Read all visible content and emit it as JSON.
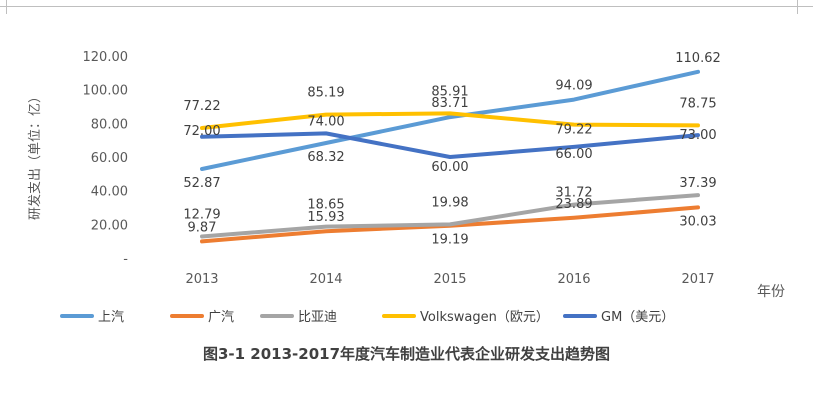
{
  "chart_data": {
    "type": "line",
    "title": "图3-1 2013-2017年度汽车制造业代表企业研发支出趋势图",
    "ylabel": "研发支出（单位：亿）",
    "xlabel": "年份",
    "categories": [
      "2013",
      "2014",
      "2015",
      "2016",
      "2017"
    ],
    "ylim": [
      0,
      120
    ],
    "yticks": [
      "-",
      "20.00",
      "40.00",
      "60.00",
      "80.00",
      "100.00",
      "120.00"
    ],
    "grid": false,
    "legend_position": "bottom",
    "series": [
      {
        "name": "上汽",
        "color": "#5B9BD5",
        "values": [
          52.87,
          68.32,
          83.71,
          94.09,
          110.62
        ],
        "labels": [
          "52.87",
          "68.32",
          "83.71",
          "94.09",
          "110.62"
        ]
      },
      {
        "name": "广汽",
        "color": "#ED7D31",
        "values": [
          9.87,
          15.93,
          19.19,
          23.89,
          30.03
        ],
        "labels": [
          "9.87",
          "15.93",
          "19.19",
          "23.89",
          "30.03"
        ]
      },
      {
        "name": "比亚迪",
        "color": "#A5A5A5",
        "values": [
          12.79,
          18.65,
          19.98,
          31.72,
          37.39
        ],
        "labels": [
          "12.79",
          "18.65",
          "19.98",
          "31.72",
          "37.39"
        ]
      },
      {
        "name": "Volkswagen（欧元）",
        "color": "#FFC000",
        "values": [
          77.22,
          85.19,
          85.91,
          79.22,
          78.75
        ],
        "labels": [
          "77.22",
          "85.19",
          "85.91",
          "79.22",
          "78.75"
        ]
      },
      {
        "name": "GM（美元）",
        "color": "#4472C4",
        "values": [
          72.0,
          74.0,
          60.0,
          66.0,
          73.0
        ],
        "labels": [
          "72.00",
          "74.00",
          "60.00",
          "66.00",
          "73.00"
        ]
      }
    ]
  }
}
